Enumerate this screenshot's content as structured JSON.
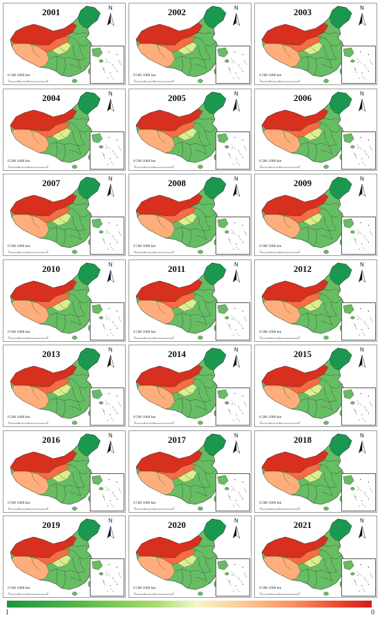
{
  "panels": [
    {
      "year": "2001"
    },
    {
      "year": "2002"
    },
    {
      "year": "2003"
    },
    {
      "year": "2004"
    },
    {
      "year": "2005"
    },
    {
      "year": "2006"
    },
    {
      "year": "2007"
    },
    {
      "year": "2008"
    },
    {
      "year": "2009"
    },
    {
      "year": "2010"
    },
    {
      "year": "2011"
    },
    {
      "year": "2012"
    },
    {
      "year": "2013"
    },
    {
      "year": "2014"
    },
    {
      "year": "2015"
    },
    {
      "year": "2016"
    },
    {
      "year": "2017"
    },
    {
      "year": "2018"
    },
    {
      "year": "2019"
    },
    {
      "year": "2020"
    },
    {
      "year": "2021"
    }
  ],
  "north_arrow_label": "N",
  "scale_bar_text": "0 500 1000 km",
  "legend": {
    "min_label": "1",
    "max_label": "0",
    "colors": [
      "#1a9641",
      "#a6d96a",
      "#f3f6c8",
      "#fdae61",
      "#d7191c"
    ]
  },
  "map_colors": {
    "west_high": "#d7301f",
    "west_mid": "#f46d43",
    "west_light": "#fdae7b",
    "east_green": "#66bd63",
    "northeast_green": "#1a9850",
    "boundary": "#2b2b2b"
  }
}
